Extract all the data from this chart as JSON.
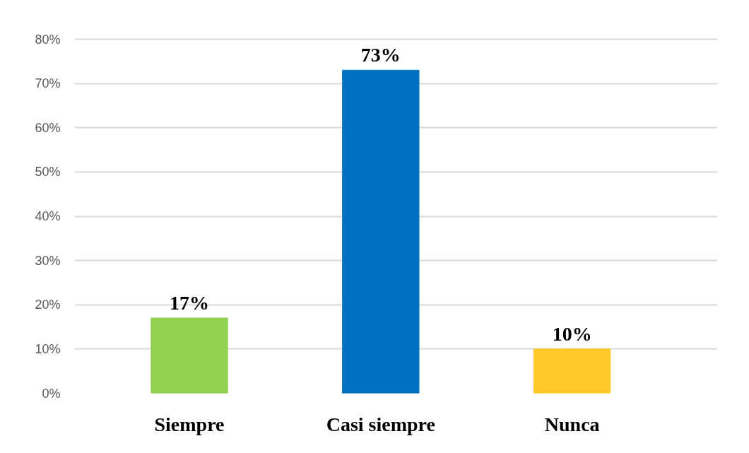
{
  "chart_data": {
    "type": "bar",
    "categories": [
      "Siempre",
      "Casi siempre",
      "Nunca"
    ],
    "values": [
      17,
      73,
      10
    ],
    "colors": [
      "#92d050",
      "#0070c0",
      "#ffca28"
    ],
    "value_labels": [
      "17%",
      "73%",
      "10%"
    ],
    "ylim": [
      0,
      80
    ],
    "yticks": [
      {
        "value": 0,
        "label": "0%"
      },
      {
        "value": 10,
        "label": "10%"
      },
      {
        "value": 20,
        "label": "20%"
      },
      {
        "value": 30,
        "label": "30%"
      },
      {
        "value": 40,
        "label": "40%"
      },
      {
        "value": 50,
        "label": "50%"
      },
      {
        "value": 60,
        "label": "60%"
      },
      {
        "value": 70,
        "label": "70%"
      },
      {
        "value": 80,
        "label": "80%"
      }
    ],
    "grid": "y"
  }
}
